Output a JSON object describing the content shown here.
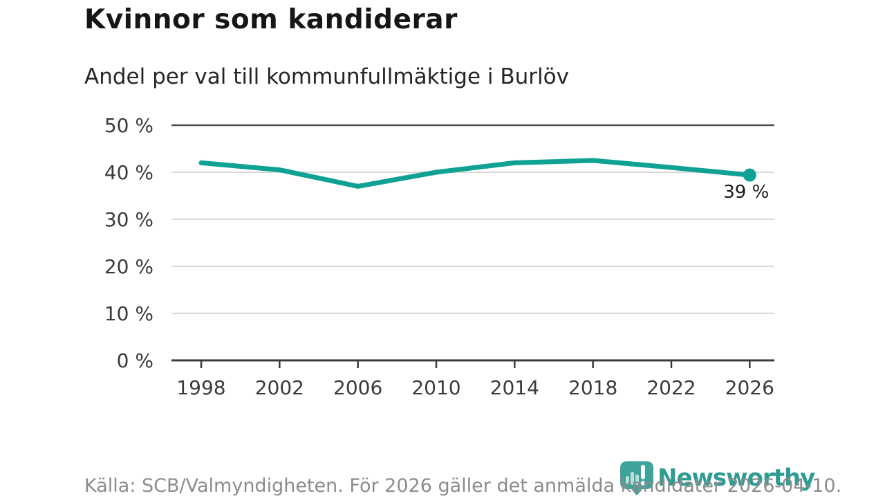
{
  "header": {
    "title": "Kvinnor som kandiderar",
    "subtitle": "Andel per val till kommunfullmäktige i Burlöv"
  },
  "chart_data": {
    "type": "line",
    "title": "Kvinnor som kandiderar",
    "subtitle": "Andel per val till kommunfullmäktige i Burlöv",
    "x": [
      1998,
      2002,
      2006,
      2010,
      2014,
      2018,
      2022,
      2026
    ],
    "xtick_labels": [
      "1998",
      "2002",
      "2006",
      "2010",
      "2014",
      "2018",
      "2022",
      "2026"
    ],
    "series": [
      {
        "values": [
          42,
          40.5,
          37,
          40,
          42,
          42.5,
          41,
          39.4
        ]
      }
    ],
    "ylim": [
      0,
      50
    ],
    "yticks": [
      50,
      40,
      30,
      20,
      10,
      0
    ],
    "ytick_labels": [
      "50 %",
      "40 %",
      "30 %",
      "20 %",
      "10 %",
      "0 %"
    ],
    "grid": "horizontal",
    "legend": "none",
    "last_point_label": "39 %"
  },
  "footer": {
    "source": "Källa: SCB/Valmyndigheten. För 2026 gäller det anmälda kandidater 2026-04-10.",
    "brand": "Newsworthy"
  },
  "colors": {
    "line": "#0FA294",
    "logo": "#2E9C93",
    "grid_light": "#D9D9D9",
    "grid_strong": "#4D4D4D",
    "axis": "#3A3A3A",
    "tick_text": "#3A3A3A",
    "label_text": "#1A1A1A",
    "title_text": "#161616",
    "subtitle_text": "#262626",
    "source_text": "#8C8C8C"
  }
}
